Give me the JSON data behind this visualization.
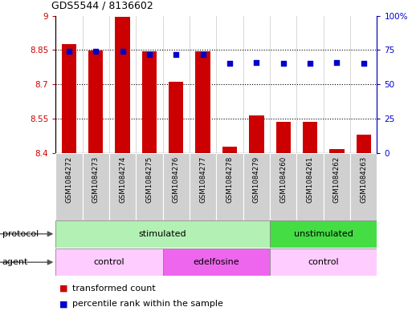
{
  "title": "GDS5544 / 8136602",
  "samples": [
    "GSM1084272",
    "GSM1084273",
    "GSM1084274",
    "GSM1084275",
    "GSM1084276",
    "GSM1084277",
    "GSM1084278",
    "GSM1084279",
    "GSM1084260",
    "GSM1084261",
    "GSM1084262",
    "GSM1084263"
  ],
  "bar_values": [
    8.875,
    8.848,
    8.995,
    8.843,
    8.71,
    8.845,
    8.425,
    8.565,
    8.535,
    8.535,
    8.415,
    8.48
  ],
  "percentile_values": [
    74,
    74,
    74,
    72,
    72,
    72,
    65,
    66,
    65,
    65,
    66,
    65
  ],
  "ylim_left": [
    8.4,
    9.0
  ],
  "ylim_right": [
    0,
    100
  ],
  "yticks_left": [
    8.4,
    8.55,
    8.7,
    8.85,
    9.0
  ],
  "ytick_labels_left": [
    "8.4",
    "8.55",
    "8.7",
    "8.85",
    "9"
  ],
  "yticks_right": [
    0,
    25,
    50,
    75,
    100
  ],
  "ytick_labels_right": [
    "0",
    "25",
    "50",
    "75",
    "100%"
  ],
  "bar_color": "#cc0000",
  "percentile_color": "#0000cc",
  "bar_bottom": 8.4,
  "protocol_groups": [
    {
      "label": "stimulated",
      "start": 0,
      "end": 8,
      "color": "#b3f0b3"
    },
    {
      "label": "unstimulated",
      "start": 8,
      "end": 12,
      "color": "#44dd44"
    }
  ],
  "agent_groups": [
    {
      "label": "control",
      "start": 0,
      "end": 4,
      "color": "#ffccff"
    },
    {
      "label": "edelfosine",
      "start": 4,
      "end": 8,
      "color": "#ee66ee"
    },
    {
      "label": "control",
      "start": 8,
      "end": 12,
      "color": "#ffccff"
    }
  ],
  "legend_bar_color": "#cc0000",
  "legend_pct_color": "#0000cc",
  "protocol_label": "protocol",
  "agent_label": "agent",
  "bg_color": "#ffffff",
  "bar_width": 0.55,
  "cell_color": "#d0d0d0",
  "border_color": "#888888"
}
